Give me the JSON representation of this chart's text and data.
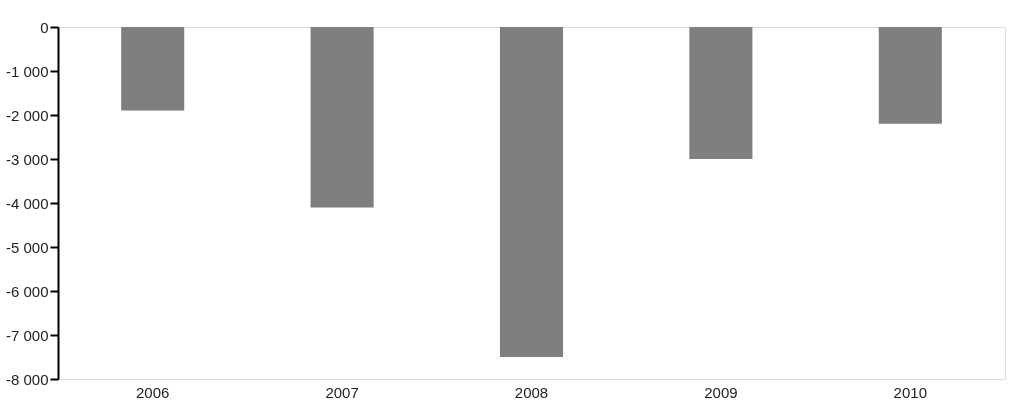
{
  "chart_data": {
    "type": "bar",
    "categories": [
      "2006",
      "2007",
      "2008",
      "2009",
      "2010"
    ],
    "values": [
      -1900,
      -4100,
      -7500,
      -3000,
      -2200
    ],
    "color": "#7f7f7f",
    "ylim": [
      -8000,
      0
    ],
    "yticks": [
      {
        "value": 0,
        "label": "0"
      },
      {
        "value": -1000,
        "label": "-1 000"
      },
      {
        "value": -2000,
        "label": "-2 000"
      },
      {
        "value": -3000,
        "label": "-3 000"
      },
      {
        "value": -4000,
        "label": "-4 000"
      },
      {
        "value": -5000,
        "label": "-5 000"
      },
      {
        "value": -6000,
        "label": "-6 000"
      },
      {
        "value": -7000,
        "label": "-7 000"
      },
      {
        "value": -8000,
        "label": "-8 000"
      }
    ],
    "grid": false
  }
}
